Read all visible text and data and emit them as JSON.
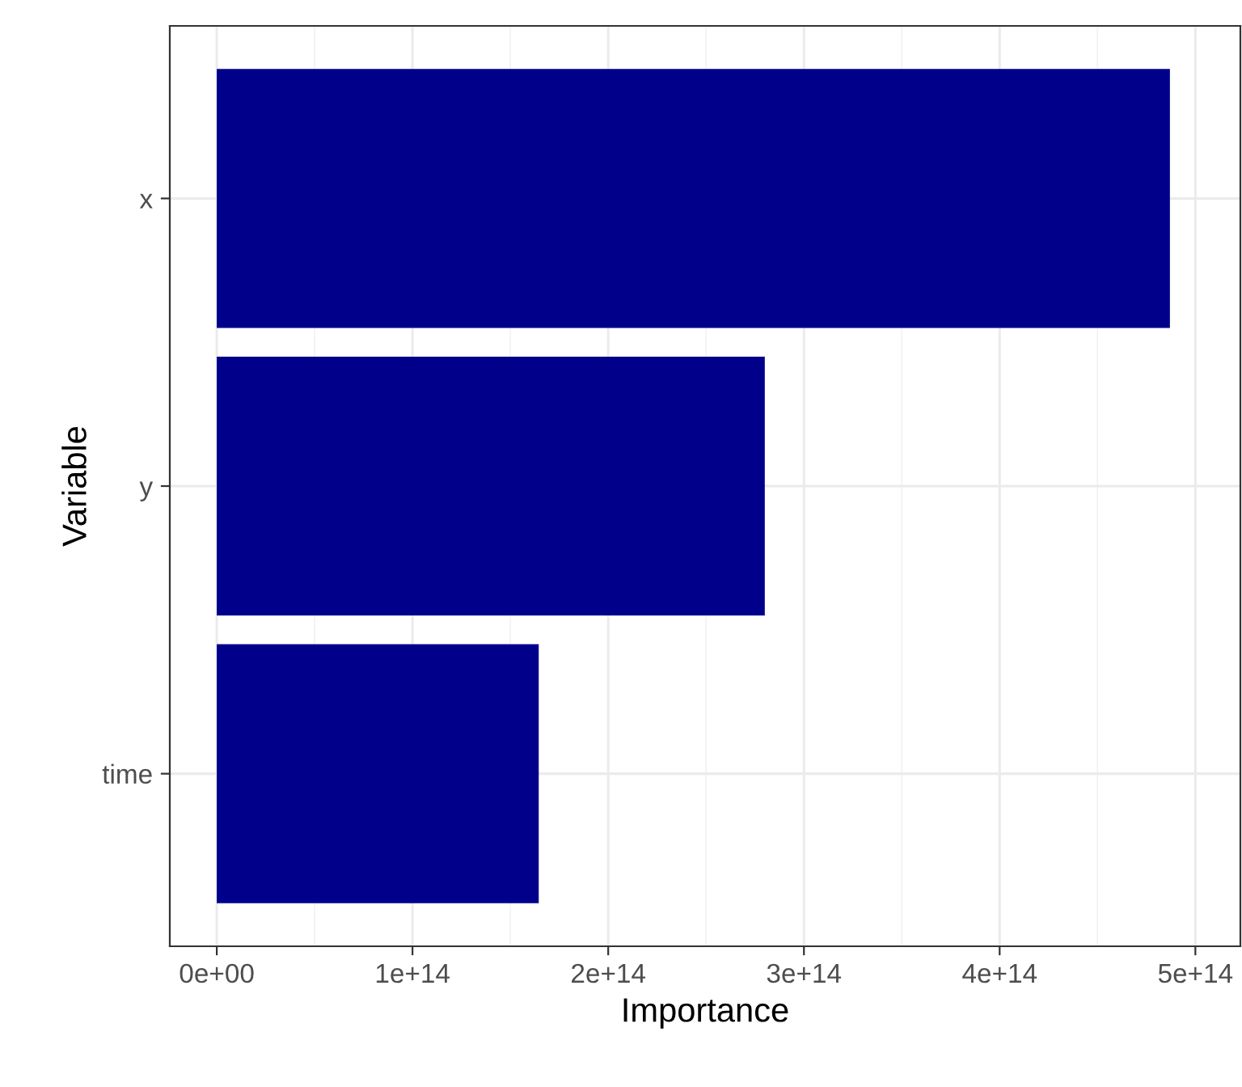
{
  "chart_data": {
    "type": "bar",
    "orientation": "horizontal",
    "xlabel": "Importance",
    "ylabel": "Variable",
    "categories": [
      "x",
      "y",
      "time"
    ],
    "values": [
      487000000000000.0,
      280000000000000.0,
      164500000000000.0
    ],
    "color": "#00008b",
    "xlim": [
      -24000000000000.0,
      523000000000000.0
    ],
    "xticks": [
      {
        "value": 0,
        "label": "0e+00"
      },
      {
        "value": 100000000000000.0,
        "label": "1e+14"
      },
      {
        "value": 200000000000000.0,
        "label": "2e+14"
      },
      {
        "value": 300000000000000.0,
        "label": "3e+14"
      },
      {
        "value": 400000000000000.0,
        "label": "4e+14"
      },
      {
        "value": 500000000000000.0,
        "label": "5e+14"
      }
    ],
    "grid": true
  }
}
